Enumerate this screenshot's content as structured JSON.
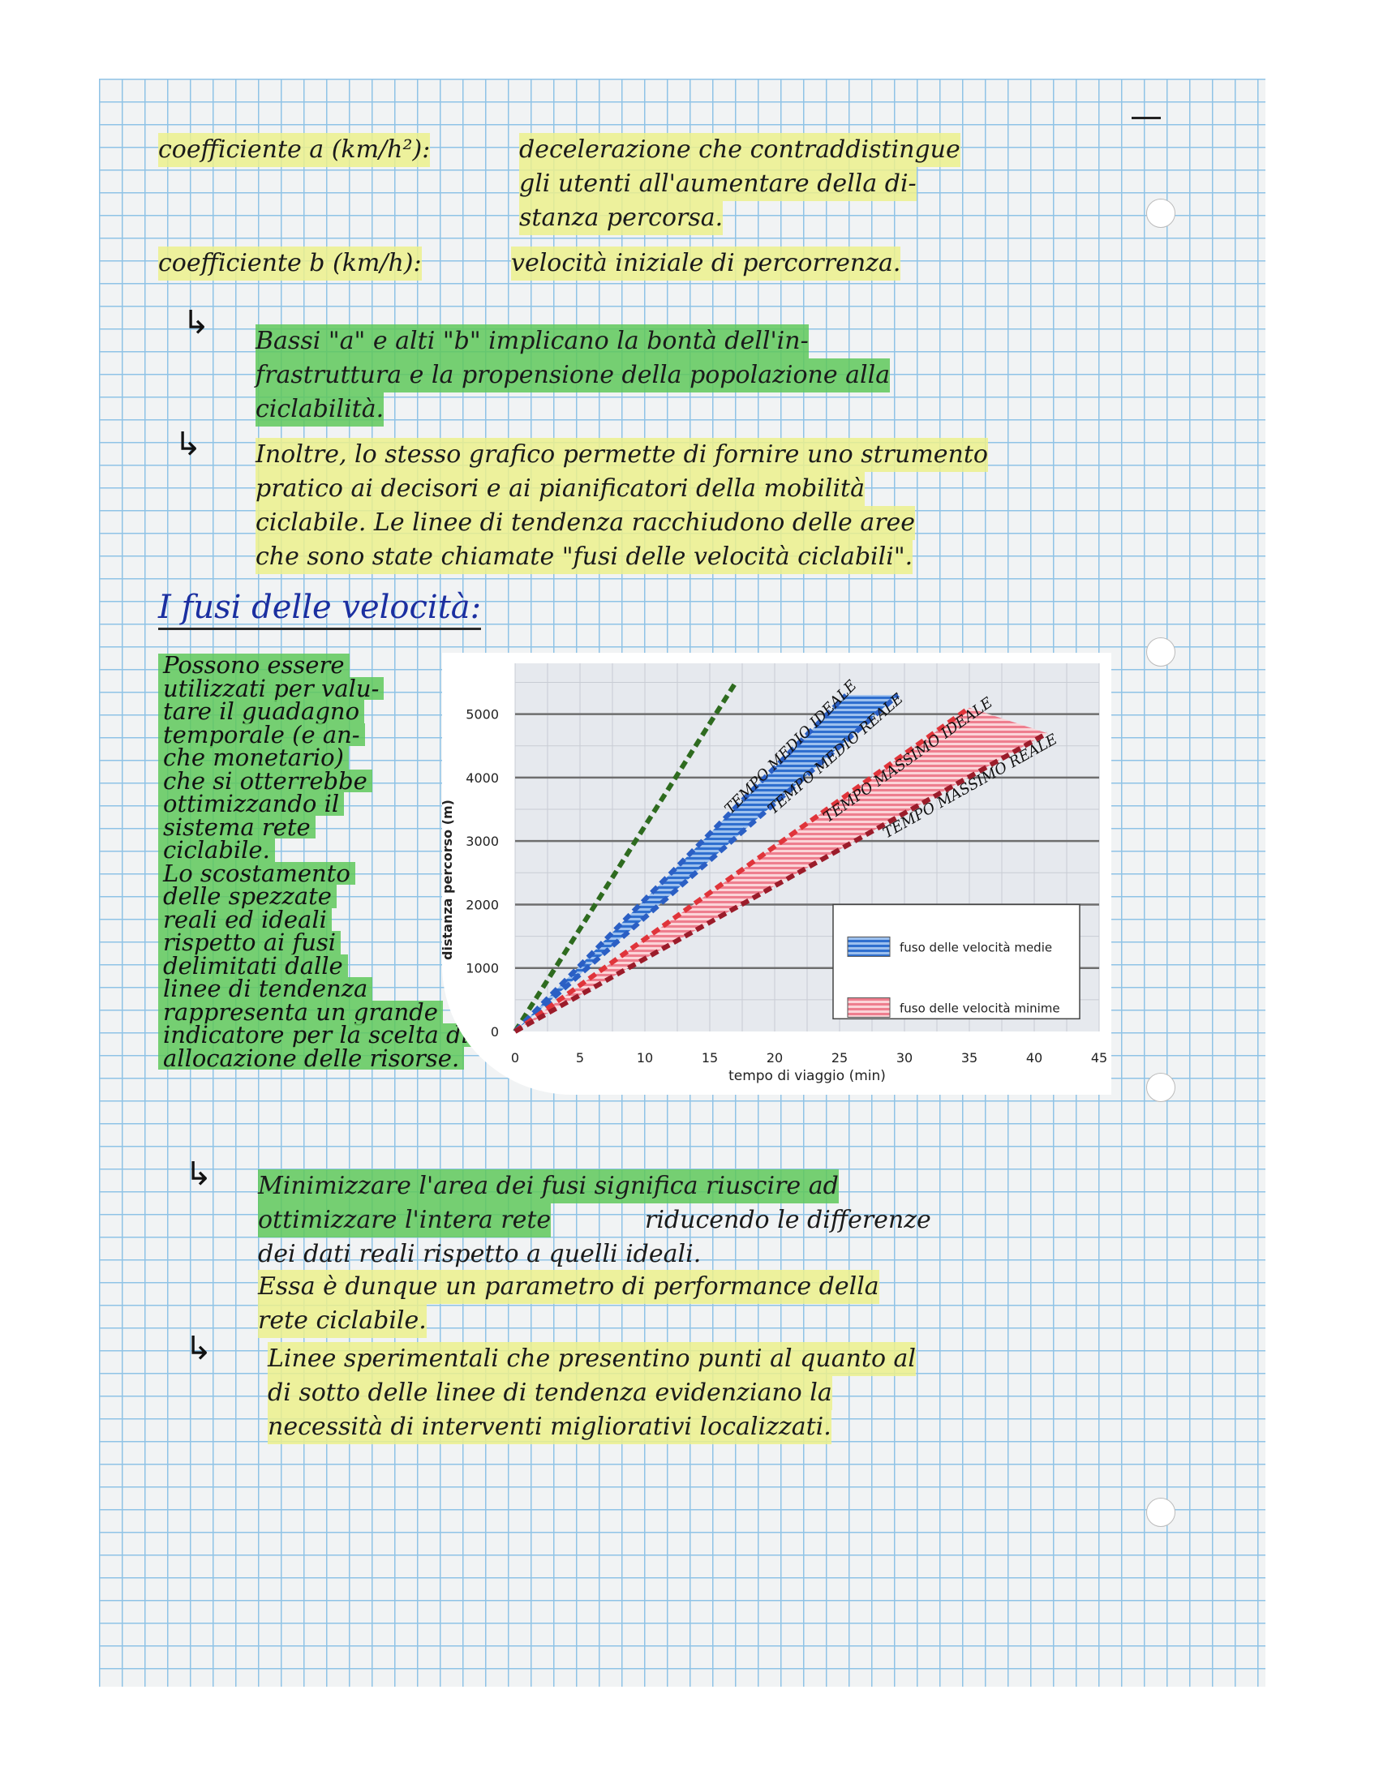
{
  "notes": {
    "coef_a_label": "coefficiente a (km/h²):",
    "coef_a_text": [
      "decelerazione che contraddistingue",
      "gli utenti all'aumentare della di-",
      "stanza percorsa."
    ],
    "coef_b_label": "coefficiente b (km/h):",
    "coef_b_text": "velocità iniziale di percorrenza.",
    "block1": [
      "Bassi \"a\" e alti \"b\" implicano la bontà dell'in-",
      "frastruttura e la propensione della popolazione alla",
      "ciclabilità."
    ],
    "block2": [
      "Inoltre, lo stesso grafico permette di fornire uno strumento",
      "pratico ai decisori e ai pianificatori della mobilità",
      "ciclabile. Le linee di tendenza racchiudono delle aree",
      "che sono state chiamate \"fusi delle velocità ciclabili\"."
    ],
    "section_title": "I fusi delle velocità:",
    "left_column": [
      "Possono essere",
      "utilizzati per valu-",
      "tare il guadagno",
      "temporale (e an-",
      "che monetario)",
      "che si otterrebbe",
      "ottimizzando il",
      "sistema rete",
      "ciclabile.",
      "Lo scostamento",
      "delle spezzate",
      "reali ed ideali",
      "rispetto ai fusi",
      "delimitati dalle",
      "linee di tendenza",
      "rappresenta un grande",
      "indicatore per la scelta di",
      "allocazione delle risorse."
    ],
    "block3_green": [
      "Minimizzare l'area dei fusi significa riuscire ad",
      "ottimizzare l'intera rete"
    ],
    "block3_rest": [
      "riducendo le differenze",
      "dei dati reali rispetto a quelli ideali."
    ],
    "block3_yellow": [
      "Essa è dunque un parametro di performance della",
      "rete ciclabile."
    ],
    "block4": [
      "Linee sperimentali che presentino punti al quanto al",
      "di sotto delle linee di tendenza evidenziano la",
      "necessità di interventi migliorativi localizzati."
    ]
  },
  "chart_data": {
    "type": "line",
    "xlabel": "tempo di viaggio (min)",
    "ylabel": "distanza percorso (m)",
    "xlim": [
      0,
      45
    ],
    "ylim": [
      0,
      5800
    ],
    "xticks": [
      "0",
      "5",
      "10",
      "15",
      "20",
      "25",
      "30",
      "35",
      "40",
      "45"
    ],
    "yticks": [
      "0",
      "1000",
      "2000",
      "3000",
      "4000",
      "5000"
    ],
    "grid": true,
    "legend_placement": "bottom-right",
    "legend": [
      "fuso delle velocità medie",
      "fuso delle velocità minime"
    ],
    "series": [
      {
        "x": [
          0,
          17
        ],
        "y": [
          0,
          5500
        ],
        "color": "#2e6b1f",
        "style": "dashed"
      },
      {
        "name": "TEMPO MEDIO IDEALE",
        "x": [
          0,
          25.5
        ],
        "y": [
          0,
          5300
        ],
        "color": "#2b5fc4",
        "style": "dashed"
      },
      {
        "name": "TEMPO MEDIO REALE",
        "x": [
          0,
          29.5
        ],
        "y": [
          0,
          5300
        ],
        "color": "#2b5fc4",
        "style": "dashed"
      },
      {
        "name": "TEMPO MASSIMO IDEALE",
        "x": [
          0,
          35
        ],
        "y": [
          0,
          5100
        ],
        "color": "#e0343a",
        "style": "dashed"
      },
      {
        "name": "TEMPO MASSIMO REALE",
        "x": [
          0,
          41
        ],
        "y": [
          0,
          4700
        ],
        "color": "#9b1c2a",
        "style": "dashed"
      }
    ],
    "bands": [
      {
        "label": "fuso delle velocità medie",
        "polygon_x": [
          0,
          25.5,
          29.5
        ],
        "polygon_y": [
          0,
          5300,
          5300
        ],
        "color": "#3a78d0"
      },
      {
        "label": "fuso delle velocità minime",
        "polygon_x": [
          0,
          35,
          41
        ],
        "polygon_y": [
          0,
          5100,
          4700
        ],
        "color": "#f08a98"
      }
    ]
  }
}
